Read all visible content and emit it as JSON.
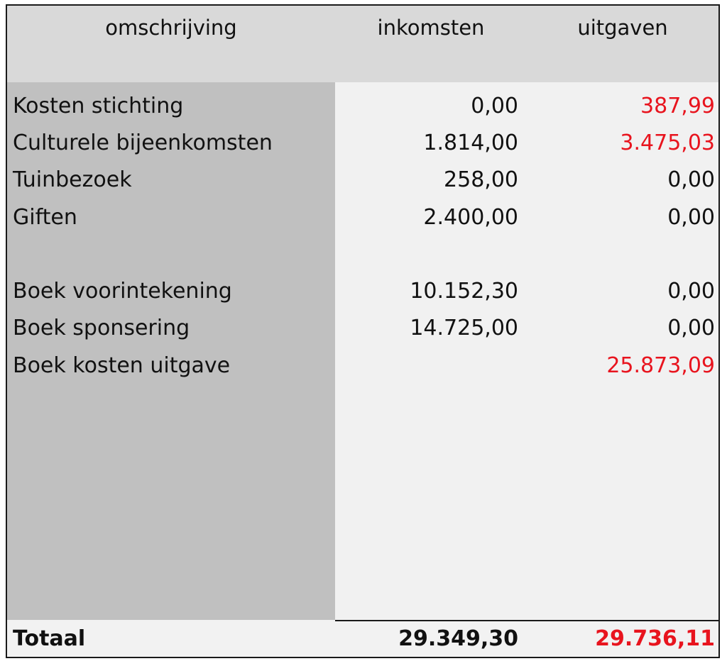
{
  "table": {
    "headers": {
      "description": "omschrijving",
      "income": "inkomsten",
      "expenses": "uitgaven"
    },
    "rows": [
      {
        "description": "Kosten stichting",
        "income": "0,00",
        "expenses": "387,99",
        "expenses_red": true
      },
      {
        "description": "Culturele bijeenkomsten",
        "income": "1.814,00",
        "expenses": "3.475,03",
        "expenses_red": true
      },
      {
        "description": "Tuinbezoek",
        "income": "258,00",
        "expenses": "0,00",
        "expenses_red": false
      },
      {
        "description": "Giften",
        "income": "2.400,00",
        "expenses": "0,00",
        "expenses_red": false
      },
      {
        "description": "Boek voorintekening",
        "income": "10.152,30",
        "expenses": "0,00",
        "expenses_red": false
      },
      {
        "description": "Boek sponsering",
        "income": "14.725,00",
        "expenses": "0,00",
        "expenses_red": false
      },
      {
        "description": "Boek kosten uitgave",
        "income": "",
        "expenses": "25.873,09",
        "expenses_red": true
      }
    ],
    "total": {
      "label": "Totaal",
      "income": "29.349,30",
      "expenses": "29.736,11",
      "expenses_red": true
    }
  },
  "colors": {
    "header_bg": "#d9d9d9",
    "description_column_bg": "#c0c0c0",
    "values_bg": "#f1f1f1",
    "negative_red": "#e8141e",
    "text": "#111111"
  }
}
